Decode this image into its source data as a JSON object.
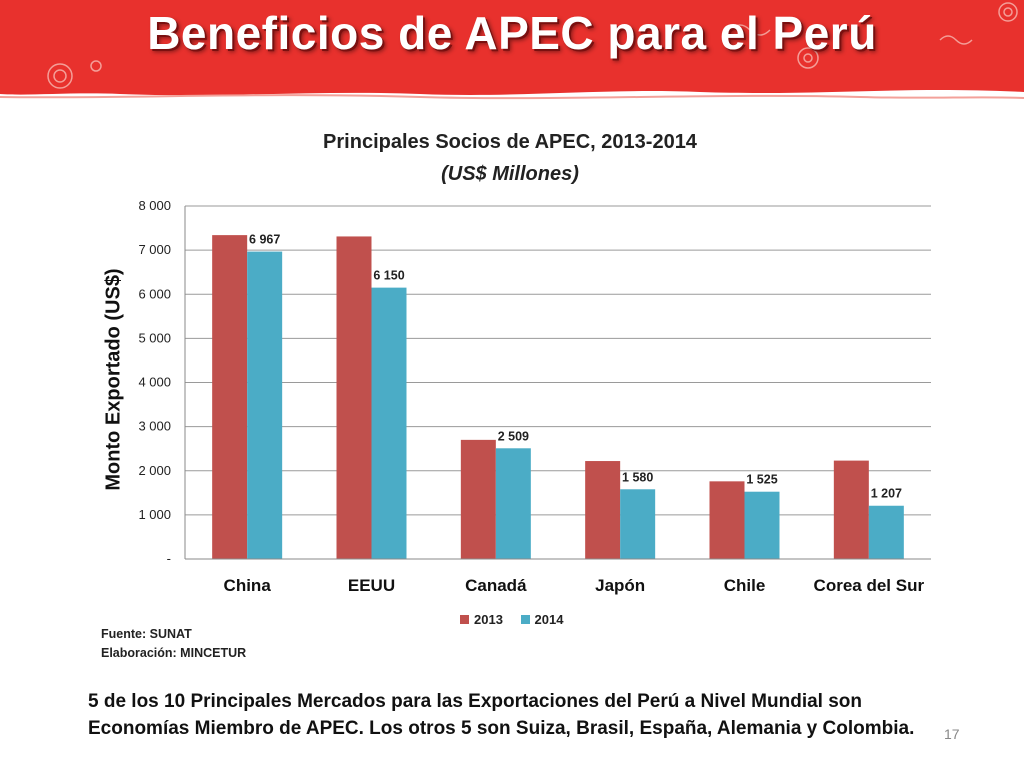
{
  "slide": {
    "title": "Beneficios de APEC para el Perú",
    "page_number": "17",
    "banner_color": "#e8312d"
  },
  "source": {
    "line1": "Fuente: SUNAT",
    "line2": "Elaboración: MINCETUR"
  },
  "note": {
    "line1": "5 de los 10 Principales Mercados para las Exportaciones del Perú a Nivel Mundial son",
    "line2": "Economías Miembro de APEC. Los otros 5 son Suiza, Brasil, España, Alemania y Colombia."
  },
  "chart_data": {
    "type": "bar",
    "title": "Principales Socios de APEC, 2013-2014",
    "subtitle": "(US$ Millones)",
    "xlabel": "",
    "ylabel": "Monto Exportado (US$)",
    "ylim": [
      0,
      8000
    ],
    "yticks": [
      "-",
      "1 000",
      "2 000",
      "3 000",
      "4 000",
      "5 000",
      "6 000",
      "7 000",
      "8 000"
    ],
    "grid": true,
    "legend_position": "bottom",
    "categories": [
      "China",
      "EEUU",
      "Canadá",
      "Japón",
      "Chile",
      "Corea del Sur"
    ],
    "series": [
      {
        "name": "2013",
        "color": "#c0504d",
        "values": [
          7340,
          7310,
          2700,
          2220,
          1760,
          2230
        ],
        "labels": [
          "",
          "",
          "",
          "",
          "",
          ""
        ]
      },
      {
        "name": "2014",
        "color": "#4bacc6",
        "values": [
          6967,
          6150,
          2509,
          1580,
          1525,
          1207
        ],
        "labels": [
          "6 967",
          "6 150",
          "2 509",
          "1 580",
          "1 525",
          "1 207"
        ]
      }
    ]
  }
}
